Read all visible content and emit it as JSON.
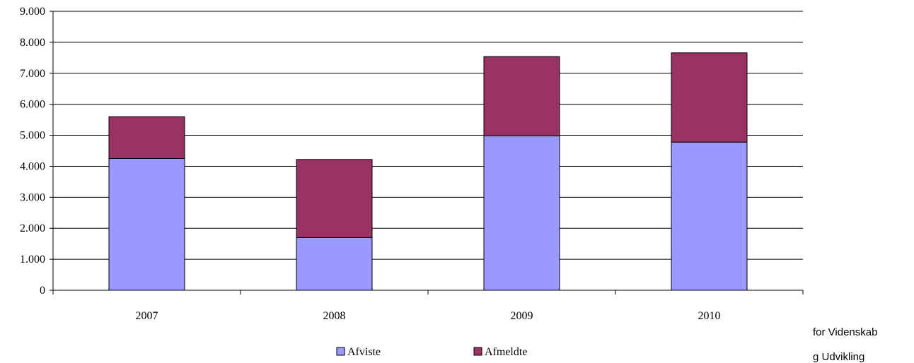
{
  "chart_data": {
    "type": "bar",
    "stacked": true,
    "title": "",
    "xlabel": "",
    "ylabel": "",
    "categories": [
      "2007",
      "2008",
      "2009",
      "2010"
    ],
    "series": [
      {
        "name": "Afviste",
        "values": [
          4250,
          1700,
          4980,
          4780
        ],
        "color": "#9999ff"
      },
      {
        "name": "Afmeldte",
        "values": [
          1350,
          2520,
          2560,
          2880
        ],
        "color": "#993366"
      }
    ],
    "ylim": [
      0,
      9000
    ],
    "yticks": [
      0,
      1000,
      2000,
      3000,
      4000,
      5000,
      6000,
      7000,
      8000,
      9000
    ],
    "ytick_labels": [
      "0",
      "1.000",
      "2.000",
      "3.000",
      "4.000",
      "5.000",
      "6.000",
      "7.000",
      "8.000",
      "9.000"
    ],
    "grid": true,
    "legend_position": "bottom"
  },
  "side_text": {
    "line1": "for Videnskab",
    "line2": "g Udvikling"
  }
}
